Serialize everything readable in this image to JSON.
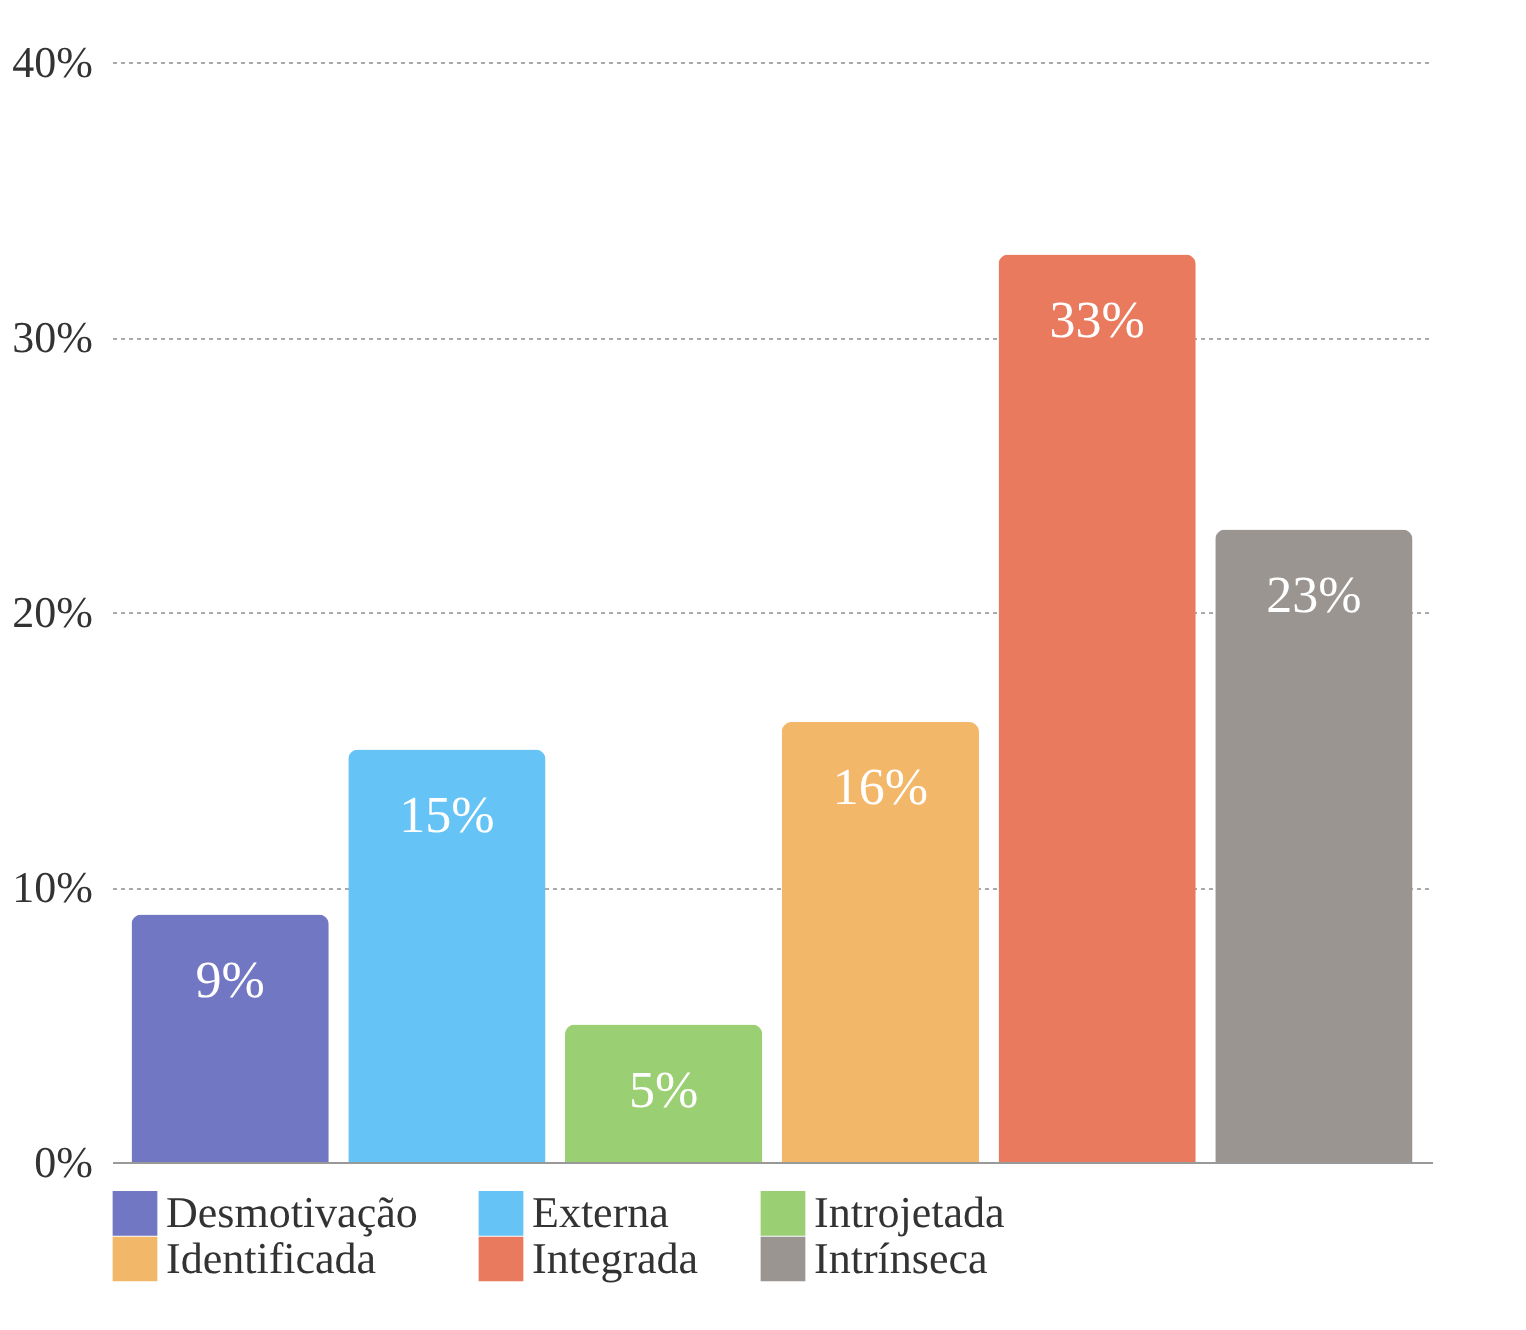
{
  "chart_data": {
    "type": "bar",
    "categories": [
      null,
      null,
      null,
      null,
      null,
      null
    ],
    "series": [
      {
        "name": "Desmotivação",
        "color": "#7277c4",
        "values": [
          9,
          null,
          null,
          null,
          null,
          null
        ],
        "value_labels": [
          "9%",
          null,
          null,
          null,
          null,
          null
        ]
      },
      {
        "name": "Externa",
        "color": "#65c3f5",
        "values": [
          null,
          15,
          null,
          null,
          null,
          null
        ],
        "value_labels": [
          null,
          "15%",
          null,
          null,
          null,
          null
        ]
      },
      {
        "name": "Introjetada",
        "color": "#9bcf74",
        "values": [
          null,
          null,
          5,
          null,
          null,
          null
        ],
        "value_labels": [
          null,
          null,
          "5%",
          null,
          null,
          null
        ]
      },
      {
        "name": "Identificada",
        "color": "#f3b76a",
        "values": [
          null,
          null,
          null,
          16,
          null,
          null
        ],
        "value_labels": [
          null,
          null,
          null,
          "16%",
          null,
          null
        ]
      },
      {
        "name": "Integrada",
        "color": "#e97a5e",
        "values": [
          null,
          null,
          null,
          null,
          33,
          null
        ],
        "value_labels": [
          null,
          null,
          null,
          null,
          "33%",
          null
        ]
      },
      {
        "name": "Intrínseca",
        "color": "#9a9591",
        "values": [
          null,
          null,
          null,
          null,
          null,
          23
        ],
        "value_labels": [
          null,
          null,
          null,
          null,
          null,
          "23%"
        ]
      }
    ],
    "ylim": [
      0,
      40
    ],
    "yticks": [
      {
        "value": 0,
        "label": "0%"
      },
      {
        "value": 10,
        "label": "10%"
      },
      {
        "value": 20,
        "label": "20%"
      },
      {
        "value": 30,
        "label": "30%"
      },
      {
        "value": 40,
        "label": "40%"
      }
    ],
    "grid": "y",
    "legend": "bottom",
    "tick_labels": "y"
  }
}
